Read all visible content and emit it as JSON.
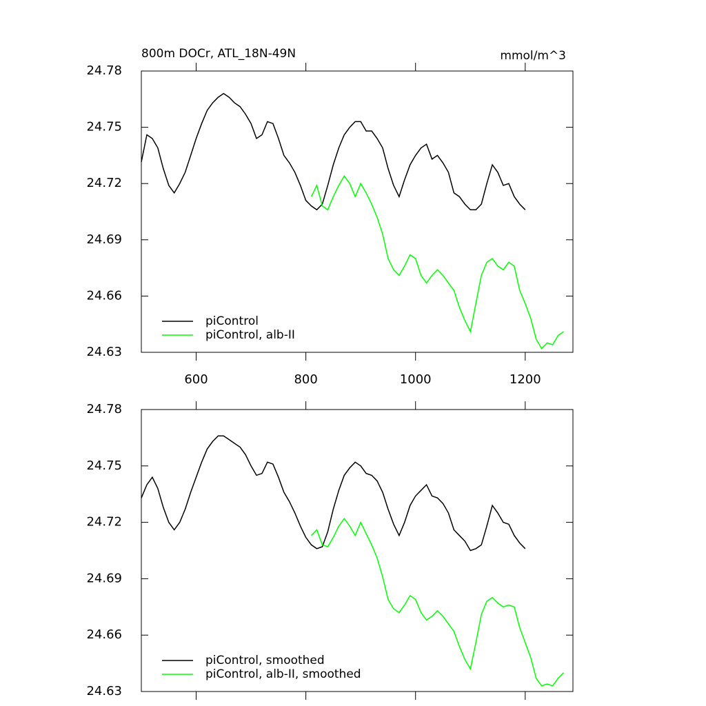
{
  "chart_data": [
    {
      "type": "line",
      "title": "800m DOCr, ATL_18N-49N",
      "units": "mmol/m^3",
      "x": [
        500,
        510,
        520,
        530,
        540,
        550,
        560,
        570,
        580,
        590,
        600,
        610,
        620,
        630,
        640,
        650,
        660,
        670,
        680,
        690,
        700,
        710,
        720,
        730,
        740,
        750,
        760,
        770,
        780,
        790,
        800,
        810,
        820,
        830,
        840,
        850,
        860,
        870,
        880,
        890,
        900,
        910,
        920,
        930,
        940,
        950,
        960,
        970,
        980,
        990,
        1000,
        1010,
        1020,
        1030,
        1040,
        1050,
        1060,
        1070,
        1080,
        1090,
        1100,
        1110,
        1120,
        1130,
        1140,
        1150,
        1160,
        1170,
        1180,
        1190,
        1200,
        1210,
        1220,
        1230,
        1240,
        1250,
        1260,
        1270
      ],
      "series": [
        {
          "name": "piControl",
          "color": "#000000",
          "values": [
            24.7315,
            24.746,
            24.744,
            24.739,
            24.728,
            24.719,
            24.715,
            24.72,
            24.726,
            24.735,
            24.744,
            24.752,
            24.759,
            24.763,
            24.766,
            24.768,
            24.766,
            24.763,
            24.761,
            24.757,
            24.752,
            24.744,
            24.746,
            24.753,
            24.752,
            24.744,
            24.735,
            24.731,
            24.726,
            24.719,
            24.711,
            24.708,
            24.706,
            24.709,
            24.719,
            24.73,
            24.739,
            24.746,
            24.75,
            24.753,
            24.753,
            24.748,
            24.748,
            24.744,
            24.739,
            24.728,
            24.719,
            24.713,
            24.722,
            24.73,
            24.735,
            24.739,
            24.741,
            24.733,
            24.735,
            24.731,
            24.726,
            24.715,
            24.713,
            24.709,
            24.706,
            24.706,
            24.709,
            24.72,
            24.73,
            24.726,
            24.719,
            24.72,
            24.713,
            24.709,
            24.706,
            null,
            null,
            null,
            null,
            null,
            null,
            null
          ]
        },
        {
          "name": "piControl, alb-II",
          "color": "#00ff00",
          "values": [
            null,
            null,
            null,
            null,
            null,
            null,
            null,
            null,
            null,
            null,
            null,
            null,
            null,
            null,
            null,
            null,
            null,
            null,
            null,
            null,
            null,
            null,
            null,
            null,
            null,
            null,
            null,
            null,
            null,
            null,
            null,
            24.713,
            24.719,
            24.708,
            24.706,
            24.713,
            24.719,
            24.724,
            24.72,
            24.713,
            24.72,
            24.715,
            24.709,
            24.702,
            24.693,
            24.68,
            24.674,
            24.671,
            24.676,
            24.682,
            24.68,
            24.671,
            24.667,
            24.671,
            24.674,
            24.671,
            24.667,
            24.663,
            24.654,
            24.647,
            24.641,
            24.656,
            24.671,
            24.678,
            24.68,
            24.676,
            24.674,
            24.678,
            24.676,
            24.663,
            24.656,
            24.648,
            24.637,
            24.632,
            24.635,
            24.634,
            24.639,
            24.641
          ]
        }
      ],
      "xlim": [
        500,
        1287
      ],
      "xticks": [
        600,
        800,
        1000,
        1200
      ],
      "xtick_labels": true,
      "ylim": [
        24.63,
        24.78
      ],
      "yticks": [
        24.63,
        24.66,
        24.69,
        24.72,
        24.75,
        24.78
      ],
      "legend": "lower left"
    },
    {
      "type": "line",
      "x": [
        500,
        510,
        520,
        530,
        540,
        550,
        560,
        570,
        580,
        590,
        600,
        610,
        620,
        630,
        640,
        650,
        660,
        670,
        680,
        690,
        700,
        710,
        720,
        730,
        740,
        750,
        760,
        770,
        780,
        790,
        800,
        810,
        820,
        830,
        840,
        850,
        860,
        870,
        880,
        890,
        900,
        910,
        920,
        930,
        940,
        950,
        960,
        970,
        980,
        990,
        1000,
        1010,
        1020,
        1030,
        1040,
        1050,
        1060,
        1070,
        1080,
        1090,
        1100,
        1110,
        1120,
        1130,
        1140,
        1150,
        1160,
        1170,
        1180,
        1190,
        1200,
        1210,
        1220,
        1230,
        1240,
        1250,
        1260,
        1270
      ],
      "series": [
        {
          "name": "piControl, smoothed",
          "color": "#000000",
          "values": [
            24.733,
            24.74,
            24.744,
            24.738,
            24.728,
            24.72,
            24.716,
            24.72,
            24.727,
            24.736,
            24.744,
            24.752,
            24.759,
            24.763,
            24.766,
            24.766,
            24.764,
            24.762,
            24.76,
            24.756,
            24.75,
            24.745,
            24.746,
            24.752,
            24.751,
            24.744,
            24.736,
            24.731,
            24.725,
            24.718,
            24.712,
            24.708,
            24.706,
            24.707,
            24.715,
            24.727,
            24.737,
            24.745,
            24.749,
            24.752,
            24.75,
            24.746,
            24.745,
            24.742,
            24.736,
            24.727,
            24.719,
            24.713,
            24.72,
            24.729,
            24.734,
            24.737,
            24.74,
            24.734,
            24.733,
            24.73,
            24.725,
            24.716,
            24.713,
            24.71,
            24.705,
            24.706,
            24.708,
            24.718,
            24.729,
            24.725,
            24.72,
            24.719,
            24.713,
            24.709,
            24.706,
            null,
            null,
            null,
            null,
            null,
            null,
            null
          ]
        },
        {
          "name": "piControl, alb-II, smoothed",
          "color": "#00ff00",
          "values": [
            null,
            null,
            null,
            null,
            null,
            null,
            null,
            null,
            null,
            null,
            null,
            null,
            null,
            null,
            null,
            null,
            null,
            null,
            null,
            null,
            null,
            null,
            null,
            null,
            null,
            null,
            null,
            null,
            null,
            null,
            null,
            24.713,
            24.716,
            24.708,
            24.707,
            24.712,
            24.718,
            24.722,
            24.718,
            24.713,
            24.72,
            24.714,
            24.708,
            24.701,
            24.691,
            24.679,
            24.674,
            24.672,
            24.676,
            24.681,
            24.679,
            24.672,
            24.668,
            24.67,
            24.673,
            24.67,
            24.666,
            24.662,
            24.654,
            24.647,
            24.642,
            24.656,
            24.671,
            24.678,
            24.68,
            24.677,
            24.675,
            24.676,
            24.675,
            24.664,
            24.656,
            24.648,
            24.637,
            24.633,
            24.634,
            24.633,
            24.637,
            24.64
          ]
        }
      ],
      "xlim": [
        500,
        1287
      ],
      "xticks": [
        600,
        800,
        1000,
        1200
      ],
      "xtick_labels": false,
      "ylim": [
        24.63,
        24.78
      ],
      "yticks": [
        24.63,
        24.66,
        24.69,
        24.72,
        24.75,
        24.78
      ],
      "legend": "lower left"
    }
  ]
}
